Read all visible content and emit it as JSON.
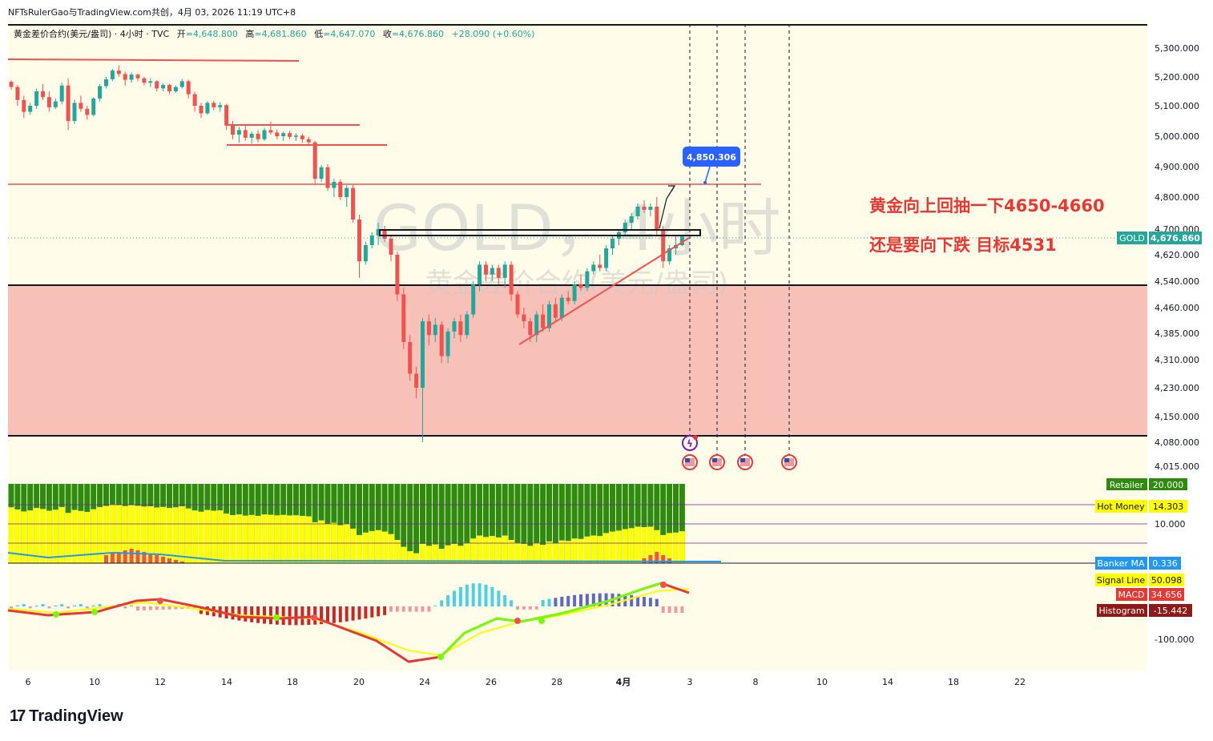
{
  "header": {
    "top_line": "NFTsRulerGao与TradingView.com共创，4月 03, 2026 11:19 UTC+8",
    "symbol_desc": "黄金差价合约(美元/盎司) · 4小时 · TVC",
    "open_label": "开",
    "open_value": "4,648.800",
    "high_label": "高",
    "high_value": "4,681.860",
    "low_label": "低",
    "low_value": "4,647.070",
    "close_label": "收",
    "close_value": "4,676.860",
    "change": "+28.090 (+0.60%)"
  },
  "watermark": {
    "title": "GOLD，4小时",
    "subtitle": "黄金差价合约(美元/盎司)"
  },
  "annotations": {
    "line1": "黄金向上回抽一下4650-4660",
    "line2": "还是要向下跌 目标4531",
    "price_callout": "4,850.306"
  },
  "price_tag": {
    "symbol": "GOLD",
    "value": "4,676.860"
  },
  "price_axis_labels": [
    "5,300.000",
    "5,200.000",
    "5,100.000",
    "5,000.000",
    "4,900.000",
    "4,800.000",
    "4,700.000",
    "4,620.000",
    "4,540.000",
    "4,460.000",
    "4,385.000",
    "4,310.000",
    "4,230.000",
    "4,150.000",
    "4,080.000",
    "4,015.000"
  ],
  "time_axis_labels": [
    "6",
    "10",
    "12",
    "14",
    "18",
    "20",
    "24",
    "26",
    "28",
    "4月",
    "3",
    "8",
    "10",
    "14",
    "18",
    "22"
  ],
  "indicator1": {
    "retailer_label": "Retailer",
    "retailer_value": "20.000",
    "hot_money_label": "Hot Money",
    "hot_money_value": "14.303",
    "axis_10": "10.000",
    "banker_label": "Banker MA",
    "banker_value": "0.336"
  },
  "indicator2": {
    "signal_label": "Signal Line",
    "signal_value": "50.098",
    "macd_label": "MACD",
    "macd_value": "34.656",
    "hist_label": "Histogram",
    "hist_value": "-15.442",
    "axis_neg100": "-100.000"
  },
  "footer": {
    "brand": "TradingView",
    "logo_glyph": "17"
  },
  "colors": {
    "bull": "#26a69a",
    "bear": "#ef5350",
    "zone": "#f8c1b8",
    "annotation": "#e53935",
    "callout": "#2962ff",
    "retailer_green": "#2e8b0e",
    "hot_money_yellow": "#ffff00",
    "signal_yellow": "#ffff00",
    "macd_red": "#e53935",
    "hist_dark": "#8b1a1a",
    "banker_blue": "#2196f3"
  },
  "chart_data": [
    {
      "type": "candlestick",
      "title": "GOLD，4小时",
      "subtitle": "黄金差价合约(美元/盎司)",
      "x_ticks": [
        "6",
        "10",
        "12",
        "14",
        "18",
        "20",
        "24",
        "26",
        "28",
        "4月",
        "3",
        "8",
        "10",
        "14",
        "18",
        "22"
      ],
      "ylim": [
        3990,
        5390
      ],
      "candles": [
        [
          0,
          5183,
          5188,
          5155,
          5165
        ],
        [
          1,
          5165,
          5172,
          5100,
          5120
        ],
        [
          2,
          5120,
          5135,
          5060,
          5080
        ],
        [
          3,
          5080,
          5110,
          5070,
          5100
        ],
        [
          4,
          5100,
          5160,
          5090,
          5150
        ],
        [
          5,
          5150,
          5175,
          5120,
          5130
        ],
        [
          6,
          5130,
          5150,
          5080,
          5095
        ],
        [
          7,
          5095,
          5125,
          5090,
          5115
        ],
        [
          8,
          5115,
          5180,
          5105,
          5170
        ],
        [
          9,
          5170,
          5195,
          5020,
          5050
        ],
        [
          10,
          5050,
          5120,
          5040,
          5110
        ],
        [
          11,
          5110,
          5135,
          5080,
          5090
        ],
        [
          12,
          5090,
          5100,
          5055,
          5070
        ],
        [
          13,
          5070,
          5130,
          5065,
          5125
        ],
        [
          14,
          5125,
          5175,
          5115,
          5168
        ],
        [
          15,
          5168,
          5200,
          5160,
          5192
        ],
        [
          16,
          5192,
          5228,
          5185,
          5222
        ],
        [
          17,
          5222,
          5240,
          5200,
          5210
        ],
        [
          18,
          5210,
          5218,
          5170,
          5190
        ],
        [
          19,
          5190,
          5216,
          5180,
          5208
        ],
        [
          20,
          5208,
          5212,
          5185,
          5195
        ],
        [
          21,
          5195,
          5200,
          5170,
          5180
        ],
        [
          22,
          5180,
          5195,
          5165,
          5185
        ],
        [
          23,
          5185,
          5188,
          5150,
          5160
        ],
        [
          24,
          5160,
          5178,
          5150,
          5172
        ],
        [
          25,
          5172,
          5176,
          5140,
          5150
        ],
        [
          26,
          5150,
          5170,
          5145,
          5165
        ],
        [
          27,
          5165,
          5192,
          5160,
          5185
        ],
        [
          28,
          5185,
          5190,
          5125,
          5140
        ],
        [
          29,
          5140,
          5148,
          5080,
          5100
        ],
        [
          30,
          5100,
          5110,
          5060,
          5075
        ],
        [
          31,
          5075,
          5115,
          5070,
          5110
        ],
        [
          32,
          5110,
          5118,
          5085,
          5095
        ],
        [
          33,
          5095,
          5112,
          5080,
          5102
        ],
        [
          34,
          5102,
          5106,
          5020,
          5035
        ],
        [
          35,
          5035,
          5050,
          4990,
          5005
        ],
        [
          36,
          5005,
          5030,
          4978,
          5020
        ],
        [
          37,
          5020,
          5035,
          4985,
          4995
        ],
        [
          38,
          4995,
          5015,
          4975,
          5008
        ],
        [
          39,
          5008,
          5020,
          4980,
          4990
        ],
        [
          40,
          4990,
          5028,
          4985,
          5020
        ],
        [
          41,
          5020,
          5048,
          5005,
          5012
        ],
        [
          42,
          5012,
          5022,
          4990,
          5000
        ],
        [
          43,
          5000,
          5015,
          4985,
          5010
        ],
        [
          44,
          5010,
          5018,
          4990,
          4998
        ],
        [
          45,
          4998,
          5010,
          4985,
          5002
        ],
        [
          46,
          5002,
          5008,
          4978,
          4990
        ],
        [
          47,
          4990,
          4998,
          4970,
          4980
        ],
        [
          48,
          4980,
          4985,
          4840,
          4860
        ],
        [
          49,
          4860,
          4905,
          4850,
          4898
        ],
        [
          50,
          4898,
          4908,
          4820,
          4830
        ],
        [
          51,
          4830,
          4860,
          4800,
          4850
        ],
        [
          52,
          4850,
          4858,
          4790,
          4800
        ],
        [
          53,
          4800,
          4840,
          4770,
          4830
        ],
        [
          54,
          4830,
          4840,
          4720,
          4730
        ],
        [
          55,
          4730,
          4745,
          4550,
          4600
        ],
        [
          56,
          4600,
          4660,
          4590,
          4650
        ],
        [
          57,
          4650,
          4690,
          4640,
          4680
        ],
        [
          58,
          4680,
          4720,
          4650,
          4700
        ],
        [
          59,
          4700,
          4710,
          4660,
          4670
        ],
        [
          60,
          4670,
          4680,
          4600,
          4620
        ],
        [
          61,
          4620,
          4630,
          4480,
          4500
        ],
        [
          62,
          4500,
          4520,
          4340,
          4360
        ],
        [
          63,
          4360,
          4380,
          4250,
          4270
        ],
        [
          64,
          4270,
          4290,
          4200,
          4230
        ],
        [
          65,
          4230,
          4430,
          4080,
          4420
        ],
        [
          66,
          4420,
          4440,
          4350,
          4380
        ],
        [
          67,
          4380,
          4430,
          4360,
          4410
        ],
        [
          68,
          4410,
          4420,
          4300,
          4320
        ],
        [
          69,
          4320,
          4400,
          4300,
          4390
        ],
        [
          70,
          4390,
          4430,
          4370,
          4420
        ],
        [
          71,
          4420,
          4440,
          4360,
          4380
        ],
        [
          72,
          4380,
          4450,
          4370,
          4440
        ],
        [
          73,
          4440,
          4540,
          4430,
          4530
        ],
        [
          74,
          4530,
          4600,
          4510,
          4590
        ],
        [
          75,
          4590,
          4600,
          4540,
          4560
        ],
        [
          76,
          4560,
          4590,
          4540,
          4580
        ],
        [
          77,
          4580,
          4590,
          4530,
          4550
        ],
        [
          78,
          4550,
          4600,
          4520,
          4590
        ],
        [
          79,
          4590,
          4600,
          4480,
          4500
        ],
        [
          80,
          4500,
          4510,
          4430,
          4440
        ],
        [
          81,
          4440,
          4460,
          4400,
          4420
        ],
        [
          82,
          4420,
          4430,
          4360,
          4380
        ],
        [
          83,
          4380,
          4450,
          4360,
          4440
        ],
        [
          84,
          4440,
          4470,
          4390,
          4400
        ],
        [
          85,
          4400,
          4480,
          4390,
          4470
        ],
        [
          86,
          4470,
          4490,
          4420,
          4430
        ],
        [
          87,
          4430,
          4500,
          4420,
          4490
        ],
        [
          88,
          4490,
          4510,
          4470,
          4480
        ],
        [
          89,
          4480,
          4540,
          4470,
          4530
        ],
        [
          90,
          4530,
          4560,
          4510,
          4520
        ],
        [
          91,
          4520,
          4580,
          4510,
          4570
        ],
        [
          92,
          4570,
          4600,
          4560,
          4590
        ],
        [
          93,
          4590,
          4620,
          4570,
          4580
        ],
        [
          94,
          4580,
          4650,
          4570,
          4640
        ],
        [
          95,
          4640,
          4680,
          4620,
          4670
        ],
        [
          96,
          4670,
          4700,
          4650,
          4690
        ],
        [
          97,
          4690,
          4730,
          4680,
          4720
        ],
        [
          98,
          4720,
          4750,
          4700,
          4740
        ],
        [
          99,
          4740,
          4780,
          4730,
          4770
        ],
        [
          100,
          4770,
          4790,
          4750,
          4760
        ],
        [
          101,
          4760,
          4780,
          4740,
          4770
        ],
        [
          102,
          4770,
          4800,
          4680,
          4700
        ],
        [
          103,
          4700,
          4710,
          4580,
          4600
        ],
        [
          104,
          4600,
          4650,
          4590,
          4640
        ],
        [
          105,
          4640,
          4680,
          4620,
          4650
        ],
        [
          106,
          4650,
          4682,
          4647,
          4677
        ]
      ]
    },
    {
      "type": "bar",
      "title": "",
      "series": [
        {
          "name": "Retailer",
          "value": 20.0
        },
        {
          "name": "Hot Money",
          "value": 14.303
        },
        {
          "name": "Banker MA",
          "value": 0.336
        }
      ],
      "reference_lines": [
        20,
        10,
        5
      ],
      "ylim": [
        0,
        20
      ]
    },
    {
      "type": "line",
      "title": "",
      "series": [
        {
          "name": "Signal Line",
          "last": 50.098
        },
        {
          "name": "MACD",
          "last": 34.656
        },
        {
          "name": "Histogram",
          "last": -15.442
        }
      ],
      "y_ticks": [
        -100
      ]
    }
  ]
}
